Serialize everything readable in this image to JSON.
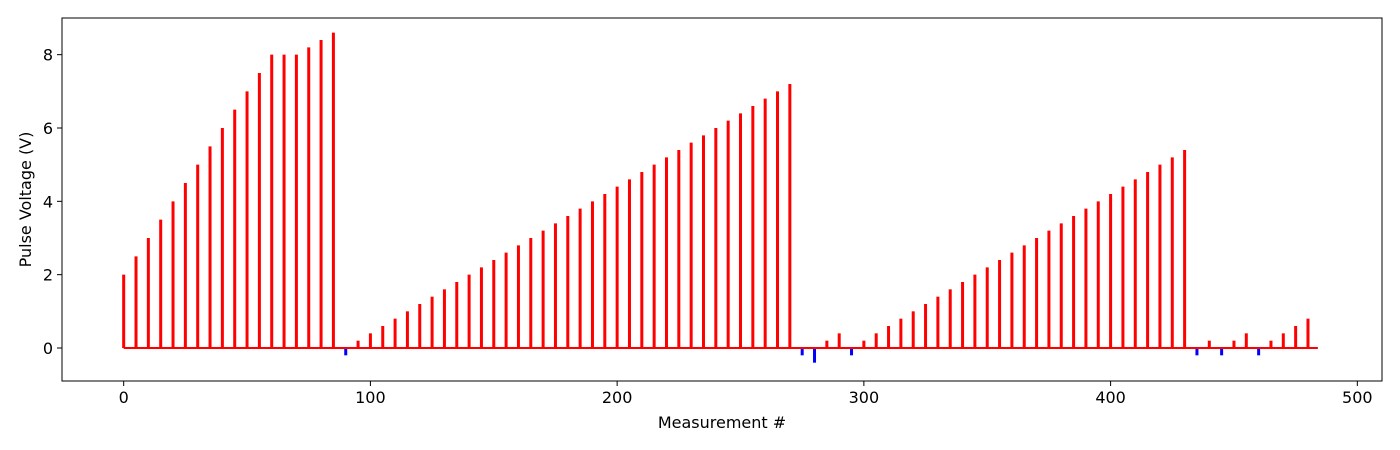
{
  "chart_data": {
    "type": "bar",
    "title": "",
    "xlabel": "Measurement #",
    "ylabel": "Pulse Voltage (V)",
    "xlim": [
      -25,
      510
    ],
    "ylim": [
      -0.9,
      9.0
    ],
    "xticks": [
      0,
      100,
      200,
      300,
      400,
      500
    ],
    "yticks": [
      0,
      2,
      4,
      6,
      8
    ],
    "grid": false,
    "legend": "none",
    "baseline": {
      "x_start": 0,
      "x_end": 484,
      "value": 0,
      "color": "#ff0000"
    },
    "series": [
      {
        "color": "#ff0000",
        "points": [
          [
            0,
            2.0
          ],
          [
            5,
            2.5
          ],
          [
            10,
            3.0
          ],
          [
            15,
            3.5
          ],
          [
            20,
            4.0
          ],
          [
            25,
            4.5
          ],
          [
            30,
            5.0
          ],
          [
            35,
            5.5
          ],
          [
            40,
            6.0
          ],
          [
            45,
            6.5
          ],
          [
            50,
            7.0
          ],
          [
            55,
            7.5
          ],
          [
            60,
            8.0
          ],
          [
            65,
            8.0
          ],
          [
            70,
            8.0
          ],
          [
            75,
            8.2
          ],
          [
            80,
            8.4
          ],
          [
            85,
            8.6
          ],
          [
            95,
            0.2
          ],
          [
            100,
            0.4
          ],
          [
            105,
            0.6
          ],
          [
            110,
            0.8
          ],
          [
            115,
            1.0
          ],
          [
            120,
            1.2
          ],
          [
            125,
            1.4
          ],
          [
            130,
            1.6
          ],
          [
            135,
            1.8
          ],
          [
            140,
            2.0
          ],
          [
            145,
            2.2
          ],
          [
            150,
            2.4
          ],
          [
            155,
            2.6
          ],
          [
            160,
            2.8
          ],
          [
            165,
            3.0
          ],
          [
            170,
            3.2
          ],
          [
            175,
            3.4
          ],
          [
            180,
            3.6
          ],
          [
            185,
            3.8
          ],
          [
            190,
            4.0
          ],
          [
            195,
            4.2
          ],
          [
            200,
            4.4
          ],
          [
            205,
            4.6
          ],
          [
            210,
            4.8
          ],
          [
            215,
            5.0
          ],
          [
            220,
            5.2
          ],
          [
            225,
            5.4
          ],
          [
            230,
            5.6
          ],
          [
            235,
            5.8
          ],
          [
            240,
            6.0
          ],
          [
            245,
            6.2
          ],
          [
            250,
            6.4
          ],
          [
            255,
            6.6
          ],
          [
            260,
            6.8
          ],
          [
            265,
            7.0
          ],
          [
            270,
            7.2
          ],
          [
            285,
            0.2
          ],
          [
            290,
            0.4
          ],
          [
            300,
            0.2
          ],
          [
            305,
            0.4
          ],
          [
            310,
            0.6
          ],
          [
            315,
            0.8
          ],
          [
            320,
            1.0
          ],
          [
            325,
            1.2
          ],
          [
            330,
            1.4
          ],
          [
            335,
            1.6
          ],
          [
            340,
            1.8
          ],
          [
            345,
            2.0
          ],
          [
            350,
            2.2
          ],
          [
            355,
            2.4
          ],
          [
            360,
            2.6
          ],
          [
            365,
            2.8
          ],
          [
            370,
            3.0
          ],
          [
            375,
            3.2
          ],
          [
            380,
            3.4
          ],
          [
            385,
            3.6
          ],
          [
            390,
            3.8
          ],
          [
            395,
            4.0
          ],
          [
            400,
            4.2
          ],
          [
            405,
            4.4
          ],
          [
            410,
            4.6
          ],
          [
            415,
            4.8
          ],
          [
            420,
            5.0
          ],
          [
            425,
            5.2
          ],
          [
            430,
            5.4
          ],
          [
            440,
            0.2
          ],
          [
            450,
            0.2
          ],
          [
            455,
            0.4
          ],
          [
            465,
            0.2
          ],
          [
            470,
            0.4
          ],
          [
            475,
            0.6
          ],
          [
            480,
            0.8
          ]
        ]
      },
      {
        "color": "#0000ff",
        "points": [
          [
            90,
            -0.2
          ],
          [
            275,
            -0.2
          ],
          [
            280,
            -0.4
          ],
          [
            295,
            -0.2
          ],
          [
            435,
            -0.2
          ],
          [
            445,
            -0.2
          ],
          [
            460,
            -0.2
          ]
        ]
      }
    ]
  }
}
